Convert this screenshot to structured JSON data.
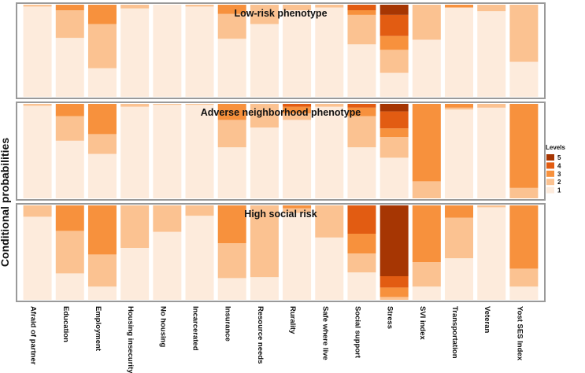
{
  "chart_data": {
    "type": "bar",
    "stacked": true,
    "ylabel": "Conditional probabilities",
    "ylim": [
      0,
      1
    ],
    "legend": {
      "title": "Levels",
      "position": "right",
      "levels": [
        "5",
        "4",
        "3",
        "2",
        "1"
      ],
      "colors": {
        "1": "#fdebdc",
        "2": "#fbc291",
        "3": "#f7913d",
        "4": "#e25c12",
        "5": "#a63603"
      }
    },
    "categories": [
      "Afraid of partner",
      "Education",
      "Employment",
      "Housing insecurity",
      "No housing",
      "Incarcerated",
      "Insurance",
      "Resource needs",
      "Rurality",
      "Safe where live",
      "Social support",
      "Stress",
      "SVI index",
      "Transportation",
      "Veteran",
      "Yost SES Index"
    ],
    "panels": [
      {
        "title": "Low-risk phenotype",
        "bars": [
          {
            "1": 0.98,
            "2": 0.02
          },
          {
            "1": 0.64,
            "2": 0.3,
            "3": 0.06
          },
          {
            "1": 0.31,
            "2": 0.48,
            "3": 0.21
          },
          {
            "1": 0.96,
            "2": 0.04
          },
          {
            "1": 1.0
          },
          {
            "1": 0.98,
            "2": 0.02
          },
          {
            "1": 0.63,
            "2": 0.27,
            "3": 0.1
          },
          {
            "1": 0.79,
            "2": 0.21
          },
          {
            "1": 0.94,
            "2": 0.06
          },
          {
            "1": 0.97,
            "2": 0.03
          },
          {
            "1": 0.57,
            "2": 0.32,
            "3": 0.05,
            "4": 0.06
          },
          {
            "1": 0.26,
            "2": 0.25,
            "3": 0.15,
            "4": 0.23,
            "5": 0.11
          },
          {
            "1": 0.62,
            "2": 0.38
          },
          {
            "1": 0.97,
            "3": 0.03
          },
          {
            "1": 0.93,
            "2": 0.07
          },
          {
            "1": 0.38,
            "2": 0.62
          }
        ]
      },
      {
        "title": "Adverse neighborhood phenotype",
        "bars": [
          {
            "1": 0.98,
            "2": 0.02
          },
          {
            "1": 0.61,
            "2": 0.26,
            "3": 0.13
          },
          {
            "1": 0.47,
            "2": 0.21,
            "3": 0.32
          },
          {
            "1": 0.97,
            "2": 0.03
          },
          {
            "1": 0.99,
            "2": 0.01
          },
          {
            "1": 0.99,
            "2": 0.01
          },
          {
            "1": 0.54,
            "2": 0.29,
            "3": 0.17
          },
          {
            "1": 0.75,
            "2": 0.25
          },
          {
            "1": 0.83,
            "2": 0.07,
            "3": 0.07,
            "4": 0.03
          },
          {
            "1": 0.97,
            "2": 0.03
          },
          {
            "1": 0.54,
            "2": 0.33,
            "3": 0.09,
            "4": 0.04
          },
          {
            "1": 0.43,
            "2": 0.22,
            "3": 0.09,
            "4": 0.18,
            "5": 0.08
          },
          {
            "1": 0.0,
            "2": 0.18,
            "3": 0.82
          },
          {
            "1": 0.94,
            "2": 0.02,
            "3": 0.04
          },
          {
            "1": 0.96,
            "2": 0.04
          },
          {
            "1": 0.0,
            "2": 0.11,
            "3": 0.89
          }
        ]
      },
      {
        "title": "High social risk",
        "bars": [
          {
            "1": 0.88,
            "2": 0.12
          },
          {
            "1": 0.28,
            "2": 0.45,
            "3": 0.27
          },
          {
            "1": 0.14,
            "2": 0.34,
            "3": 0.52
          },
          {
            "1": 0.55,
            "2": 0.45
          },
          {
            "1": 0.72,
            "2": 0.28
          },
          {
            "1": 0.89,
            "2": 0.11
          },
          {
            "1": 0.23,
            "2": 0.37,
            "3": 0.4
          },
          {
            "1": 0.24,
            "2": 0.76
          },
          {
            "1": 0.92,
            "2": 0.05,
            "3": 0.03
          },
          {
            "1": 0.66,
            "2": 0.34
          },
          {
            "1": 0.29,
            "2": 0.2,
            "3": 0.21,
            "4": 0.3
          },
          {
            "1": 0.0,
            "2": 0.03,
            "3": 0.1,
            "4": 0.12,
            "5": 0.75
          },
          {
            "1": 0.14,
            "2": 0.26,
            "3": 0.6
          },
          {
            "1": 0.44,
            "2": 0.43,
            "3": 0.13
          },
          {
            "1": 0.98,
            "2": 0.02
          },
          {
            "1": 0.14,
            "2": 0.19,
            "3": 0.67
          }
        ]
      }
    ]
  }
}
